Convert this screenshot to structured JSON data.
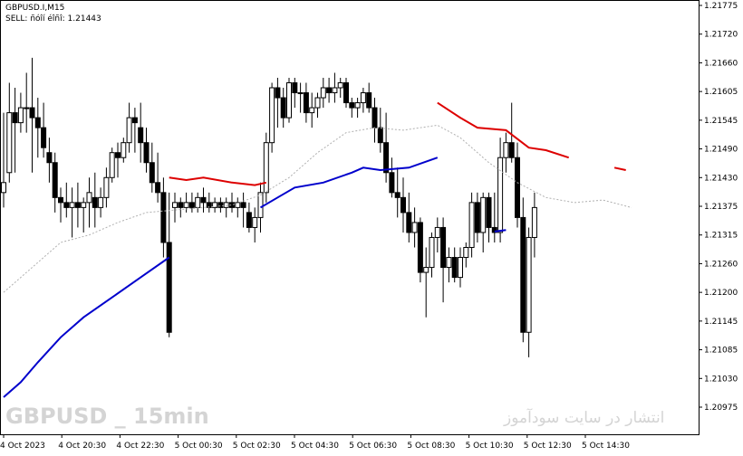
{
  "header": {
    "symbol_timeframe": "GBPUSD.I,M15",
    "signal_line": "SELL: ñóîí éîñî: 1.21443"
  },
  "watermarks": {
    "left": "GBPUSD _ 15min",
    "right": "انتشار در سایت سودآموز"
  },
  "colors": {
    "candle": "#000000",
    "up_line": "#0000cc",
    "down_line": "#dd0000",
    "ma_dotted": "#b0b0b0",
    "watermark": "#d4d4d4"
  },
  "chart_data": {
    "type": "candlestick",
    "symbol": "GBPUSD.I",
    "timeframe": "M15",
    "ylim": [
      1.2097,
      1.21775
    ],
    "y_ticks": [
      "1.21775",
      "1.21720",
      "1.21660",
      "1.21605",
      "1.21545",
      "1.21490",
      "1.21430",
      "1.21375",
      "1.21315",
      "1.21260",
      "1.21200",
      "1.21145",
      "1.21085",
      "1.21030",
      "1.20975"
    ],
    "x_ticks": [
      "4 Oct 2023",
      "4 Oct 20:30",
      "4 Oct 22:30",
      "5 Oct 00:30",
      "5 Oct 02:30",
      "5 Oct 04:30",
      "5 Oct 06:30",
      "5 Oct 08:30",
      "5 Oct 10:30",
      "5 Oct 12:30",
      "5 Oct 14:30"
    ],
    "candles": [
      {
        "o": 1.214,
        "h": 1.2156,
        "l": 1.2137,
        "c": 1.2142
      },
      {
        "o": 1.2144,
        "h": 1.2162,
        "l": 1.2142,
        "c": 1.2156
      },
      {
        "o": 1.2156,
        "h": 1.2161,
        "l": 1.2144,
        "c": 1.2154
      },
      {
        "o": 1.2154,
        "h": 1.216,
        "l": 1.2152,
        "c": 1.2157
      },
      {
        "o": 1.2157,
        "h": 1.2164,
        "l": 1.2152,
        "c": 1.2157
      },
      {
        "o": 1.2157,
        "h": 1.2167,
        "l": 1.2144,
        "c": 1.2155
      },
      {
        "o": 1.2155,
        "h": 1.2159,
        "l": 1.2147,
        "c": 1.2153
      },
      {
        "o": 1.2153,
        "h": 1.2158,
        "l": 1.2147,
        "c": 1.2149
      },
      {
        "o": 1.2148,
        "h": 1.2151,
        "l": 1.2142,
        "c": 1.2146
      },
      {
        "o": 1.2146,
        "h": 1.2148,
        "l": 1.2136,
        "c": 1.2139
      },
      {
        "o": 1.2139,
        "h": 1.2141,
        "l": 1.2134,
        "c": 1.2138
      },
      {
        "o": 1.2138,
        "h": 1.2142,
        "l": 1.2135,
        "c": 1.2137
      },
      {
        "o": 1.2137,
        "h": 1.2141,
        "l": 1.2131,
        "c": 1.2138
      },
      {
        "o": 1.2138,
        "h": 1.2142,
        "l": 1.2133,
        "c": 1.2137
      },
      {
        "o": 1.2137,
        "h": 1.2139,
        "l": 1.2132,
        "c": 1.2138
      },
      {
        "o": 1.2138,
        "h": 1.2143,
        "l": 1.2133,
        "c": 1.214
      },
      {
        "o": 1.2139,
        "h": 1.2144,
        "l": 1.2133,
        "c": 1.2137
      },
      {
        "o": 1.2137,
        "h": 1.2141,
        "l": 1.2135,
        "c": 1.2139
      },
      {
        "o": 1.2139,
        "h": 1.2145,
        "l": 1.2137,
        "c": 1.2143
      },
      {
        "o": 1.2143,
        "h": 1.2149,
        "l": 1.2142,
        "c": 1.2148
      },
      {
        "o": 1.2148,
        "h": 1.215,
        "l": 1.2143,
        "c": 1.2147
      },
      {
        "o": 1.2147,
        "h": 1.2151,
        "l": 1.2146,
        "c": 1.215
      },
      {
        "o": 1.215,
        "h": 1.2158,
        "l": 1.2148,
        "c": 1.2155
      },
      {
        "o": 1.2155,
        "h": 1.2157,
        "l": 1.2148,
        "c": 1.2154
      },
      {
        "o": 1.2153,
        "h": 1.2158,
        "l": 1.2146,
        "c": 1.215
      },
      {
        "o": 1.215,
        "h": 1.2153,
        "l": 1.2144,
        "c": 1.2146
      },
      {
        "o": 1.2146,
        "h": 1.215,
        "l": 1.214,
        "c": 1.2142
      },
      {
        "o": 1.2142,
        "h": 1.2148,
        "l": 1.2138,
        "c": 1.214
      },
      {
        "o": 1.214,
        "h": 1.2143,
        "l": 1.2127,
        "c": 1.213
      },
      {
        "o": 1.213,
        "h": 1.214,
        "l": 1.2111,
        "c": 1.2112
      },
      {
        "o": 1.2137,
        "h": 1.214,
        "l": 1.2134,
        "c": 1.2138
      },
      {
        "o": 1.2138,
        "h": 1.2139,
        "l": 1.2135,
        "c": 1.2137
      },
      {
        "o": 1.2137,
        "h": 1.214,
        "l": 1.2136,
        "c": 1.2138
      },
      {
        "o": 1.2138,
        "h": 1.214,
        "l": 1.2136,
        "c": 1.2137
      },
      {
        "o": 1.2137,
        "h": 1.214,
        "l": 1.2136,
        "c": 1.2139
      },
      {
        "o": 1.2139,
        "h": 1.2141,
        "l": 1.2136,
        "c": 1.2138
      },
      {
        "o": 1.2138,
        "h": 1.214,
        "l": 1.2136,
        "c": 1.2137
      },
      {
        "o": 1.2137,
        "h": 1.2139,
        "l": 1.2136,
        "c": 1.2138
      },
      {
        "o": 1.2138,
        "h": 1.2139,
        "l": 1.2136,
        "c": 1.2137
      },
      {
        "o": 1.2137,
        "h": 1.2139,
        "l": 1.2135,
        "c": 1.2138
      },
      {
        "o": 1.2138,
        "h": 1.214,
        "l": 1.2136,
        "c": 1.2137
      },
      {
        "o": 1.2137,
        "h": 1.2139,
        "l": 1.2135,
        "c": 1.2138
      },
      {
        "o": 1.2138,
        "h": 1.214,
        "l": 1.2133,
        "c": 1.2137
      },
      {
        "o": 1.2136,
        "h": 1.2138,
        "l": 1.2132,
        "c": 1.2133
      },
      {
        "o": 1.2133,
        "h": 1.2137,
        "l": 1.213,
        "c": 1.2135
      },
      {
        "o": 1.2135,
        "h": 1.2142,
        "l": 1.2132,
        "c": 1.214
      },
      {
        "o": 1.214,
        "h": 1.2152,
        "l": 1.2138,
        "c": 1.215
      },
      {
        "o": 1.215,
        "h": 1.2162,
        "l": 1.2148,
        "c": 1.2161
      },
      {
        "o": 1.2161,
        "h": 1.2163,
        "l": 1.2153,
        "c": 1.2159
      },
      {
        "o": 1.2159,
        "h": 1.2161,
        "l": 1.2153,
        "c": 1.2155
      },
      {
        "o": 1.2155,
        "h": 1.2163,
        "l": 1.2154,
        "c": 1.2162
      },
      {
        "o": 1.2162,
        "h": 1.2163,
        "l": 1.2157,
        "c": 1.216
      },
      {
        "o": 1.216,
        "h": 1.2162,
        "l": 1.2156,
        "c": 1.216
      },
      {
        "o": 1.216,
        "h": 1.2162,
        "l": 1.2154,
        "c": 1.2156
      },
      {
        "o": 1.2156,
        "h": 1.216,
        "l": 1.2153,
        "c": 1.2157
      },
      {
        "o": 1.2157,
        "h": 1.216,
        "l": 1.2155,
        "c": 1.2159
      },
      {
        "o": 1.2159,
        "h": 1.2163,
        "l": 1.2157,
        "c": 1.2161
      },
      {
        "o": 1.2161,
        "h": 1.2163,
        "l": 1.2158,
        "c": 1.216
      },
      {
        "o": 1.216,
        "h": 1.2164,
        "l": 1.2158,
        "c": 1.2161
      },
      {
        "o": 1.2161,
        "h": 1.2163,
        "l": 1.2159,
        "c": 1.2162
      },
      {
        "o": 1.2162,
        "h": 1.2163,
        "l": 1.2157,
        "c": 1.2158
      },
      {
        "o": 1.2158,
        "h": 1.2159,
        "l": 1.2155,
        "c": 1.2157
      },
      {
        "o": 1.2157,
        "h": 1.2159,
        "l": 1.2155,
        "c": 1.2158
      },
      {
        "o": 1.2158,
        "h": 1.2161,
        "l": 1.2156,
        "c": 1.216
      },
      {
        "o": 1.216,
        "h": 1.2162,
        "l": 1.2156,
        "c": 1.2157
      },
      {
        "o": 1.2157,
        "h": 1.2159,
        "l": 1.215,
        "c": 1.2153
      },
      {
        "o": 1.2153,
        "h": 1.2157,
        "l": 1.2148,
        "c": 1.215
      },
      {
        "o": 1.215,
        "h": 1.2156,
        "l": 1.2142,
        "c": 1.2144
      },
      {
        "o": 1.2144,
        "h": 1.2147,
        "l": 1.2139,
        "c": 1.214
      },
      {
        "o": 1.214,
        "h": 1.2145,
        "l": 1.2135,
        "c": 1.2139
      },
      {
        "o": 1.2139,
        "h": 1.2143,
        "l": 1.2132,
        "c": 1.2136
      },
      {
        "o": 1.2136,
        "h": 1.214,
        "l": 1.213,
        "c": 1.2132
      },
      {
        "o": 1.2132,
        "h": 1.2137,
        "l": 1.2129,
        "c": 1.2134
      },
      {
        "o": 1.2134,
        "h": 1.2135,
        "l": 1.2122,
        "c": 1.2124
      },
      {
        "o": 1.2124,
        "h": 1.2129,
        "l": 1.2115,
        "c": 1.2125
      },
      {
        "o": 1.2125,
        "h": 1.2132,
        "l": 1.2123,
        "c": 1.2131
      },
      {
        "o": 1.2131,
        "h": 1.2135,
        "l": 1.2128,
        "c": 1.2133
      },
      {
        "o": 1.2133,
        "h": 1.2135,
        "l": 1.2118,
        "c": 1.2125
      },
      {
        "o": 1.2125,
        "h": 1.2129,
        "l": 1.2122,
        "c": 1.2127
      },
      {
        "o": 1.2127,
        "h": 1.2129,
        "l": 1.2122,
        "c": 1.2123
      },
      {
        "o": 1.2123,
        "h": 1.2129,
        "l": 1.2121,
        "c": 1.2127
      },
      {
        "o": 1.2127,
        "h": 1.213,
        "l": 1.2125,
        "c": 1.2129
      },
      {
        "o": 1.2129,
        "h": 1.214,
        "l": 1.2127,
        "c": 1.2138
      },
      {
        "o": 1.2138,
        "h": 1.214,
        "l": 1.213,
        "c": 1.2132
      },
      {
        "o": 1.2132,
        "h": 1.214,
        "l": 1.2128,
        "c": 1.2139
      },
      {
        "o": 1.2139,
        "h": 1.214,
        "l": 1.213,
        "c": 1.2133
      },
      {
        "o": 1.2133,
        "h": 1.214,
        "l": 1.213,
        "c": 1.2132
      },
      {
        "o": 1.2132,
        "h": 1.2151,
        "l": 1.213,
        "c": 1.2147
      },
      {
        "o": 1.2147,
        "h": 1.2152,
        "l": 1.2144,
        "c": 1.215
      },
      {
        "o": 1.215,
        "h": 1.2158,
        "l": 1.2146,
        "c": 1.2147
      },
      {
        "o": 1.2147,
        "h": 1.215,
        "l": 1.2133,
        "c": 1.2135
      },
      {
        "o": 1.2135,
        "h": 1.2139,
        "l": 1.211,
        "c": 1.2112
      },
      {
        "o": 1.2112,
        "h": 1.2133,
        "l": 1.2107,
        "c": 1.2131
      },
      {
        "o": 1.2131,
        "h": 1.214,
        "l": 1.2127,
        "c": 1.2137
      }
    ],
    "up_line_segments": [
      [
        [
          0,
          1.2099
        ],
        [
          3,
          1.2102
        ],
        [
          6,
          1.2106
        ],
        [
          10,
          1.2111
        ],
        [
          14,
          1.2115
        ],
        [
          19,
          1.2119
        ],
        [
          24,
          1.2123
        ],
        [
          29,
          1.2127
        ]
      ],
      [
        [
          45,
          1.2137
        ],
        [
          48,
          1.2139
        ],
        [
          51,
          1.2141
        ],
        [
          56,
          1.2142
        ],
        [
          61,
          1.2144
        ],
        [
          63,
          1.2145
        ],
        [
          66,
          1.21445
        ],
        [
          71,
          1.2145
        ],
        [
          76,
          1.2147
        ]
      ],
      [
        [
          86,
          1.21322
        ],
        [
          88,
          1.21325
        ]
      ]
    ],
    "down_line_segments": [
      [
        [
          29,
          1.2143
        ],
        [
          32,
          1.21425
        ],
        [
          35,
          1.2143
        ],
        [
          40,
          1.2142
        ],
        [
          44,
          1.21415
        ],
        [
          46,
          1.2142
        ]
      ],
      [
        [
          76,
          1.2158
        ],
        [
          80,
          1.2155
        ],
        [
          83,
          1.2153
        ],
        [
          88,
          1.21525
        ],
        [
          92,
          1.2149
        ],
        [
          95,
          1.21485
        ],
        [
          99,
          1.2147
        ]
      ],
      [
        [
          107,
          1.2145
        ],
        [
          109,
          1.21445
        ]
      ]
    ],
    "ma_dotted": [
      [
        0,
        1.212
      ],
      [
        5,
        1.2125
      ],
      [
        10,
        1.213
      ],
      [
        15,
        1.21315
      ],
      [
        20,
        1.2134
      ],
      [
        25,
        1.2136
      ],
      [
        30,
        1.21365
      ],
      [
        40,
        1.21375
      ],
      [
        45,
        1.21395
      ],
      [
        50,
        1.2143
      ],
      [
        55,
        1.2148
      ],
      [
        60,
        1.2152
      ],
      [
        65,
        1.2153
      ],
      [
        70,
        1.21525
      ],
      [
        76,
        1.21535
      ],
      [
        80,
        1.2151
      ],
      [
        85,
        1.2146
      ],
      [
        90,
        1.2142
      ],
      [
        95,
        1.2139
      ],
      [
        100,
        1.2138
      ],
      [
        105,
        1.21385
      ],
      [
        110,
        1.2137
      ]
    ]
  }
}
